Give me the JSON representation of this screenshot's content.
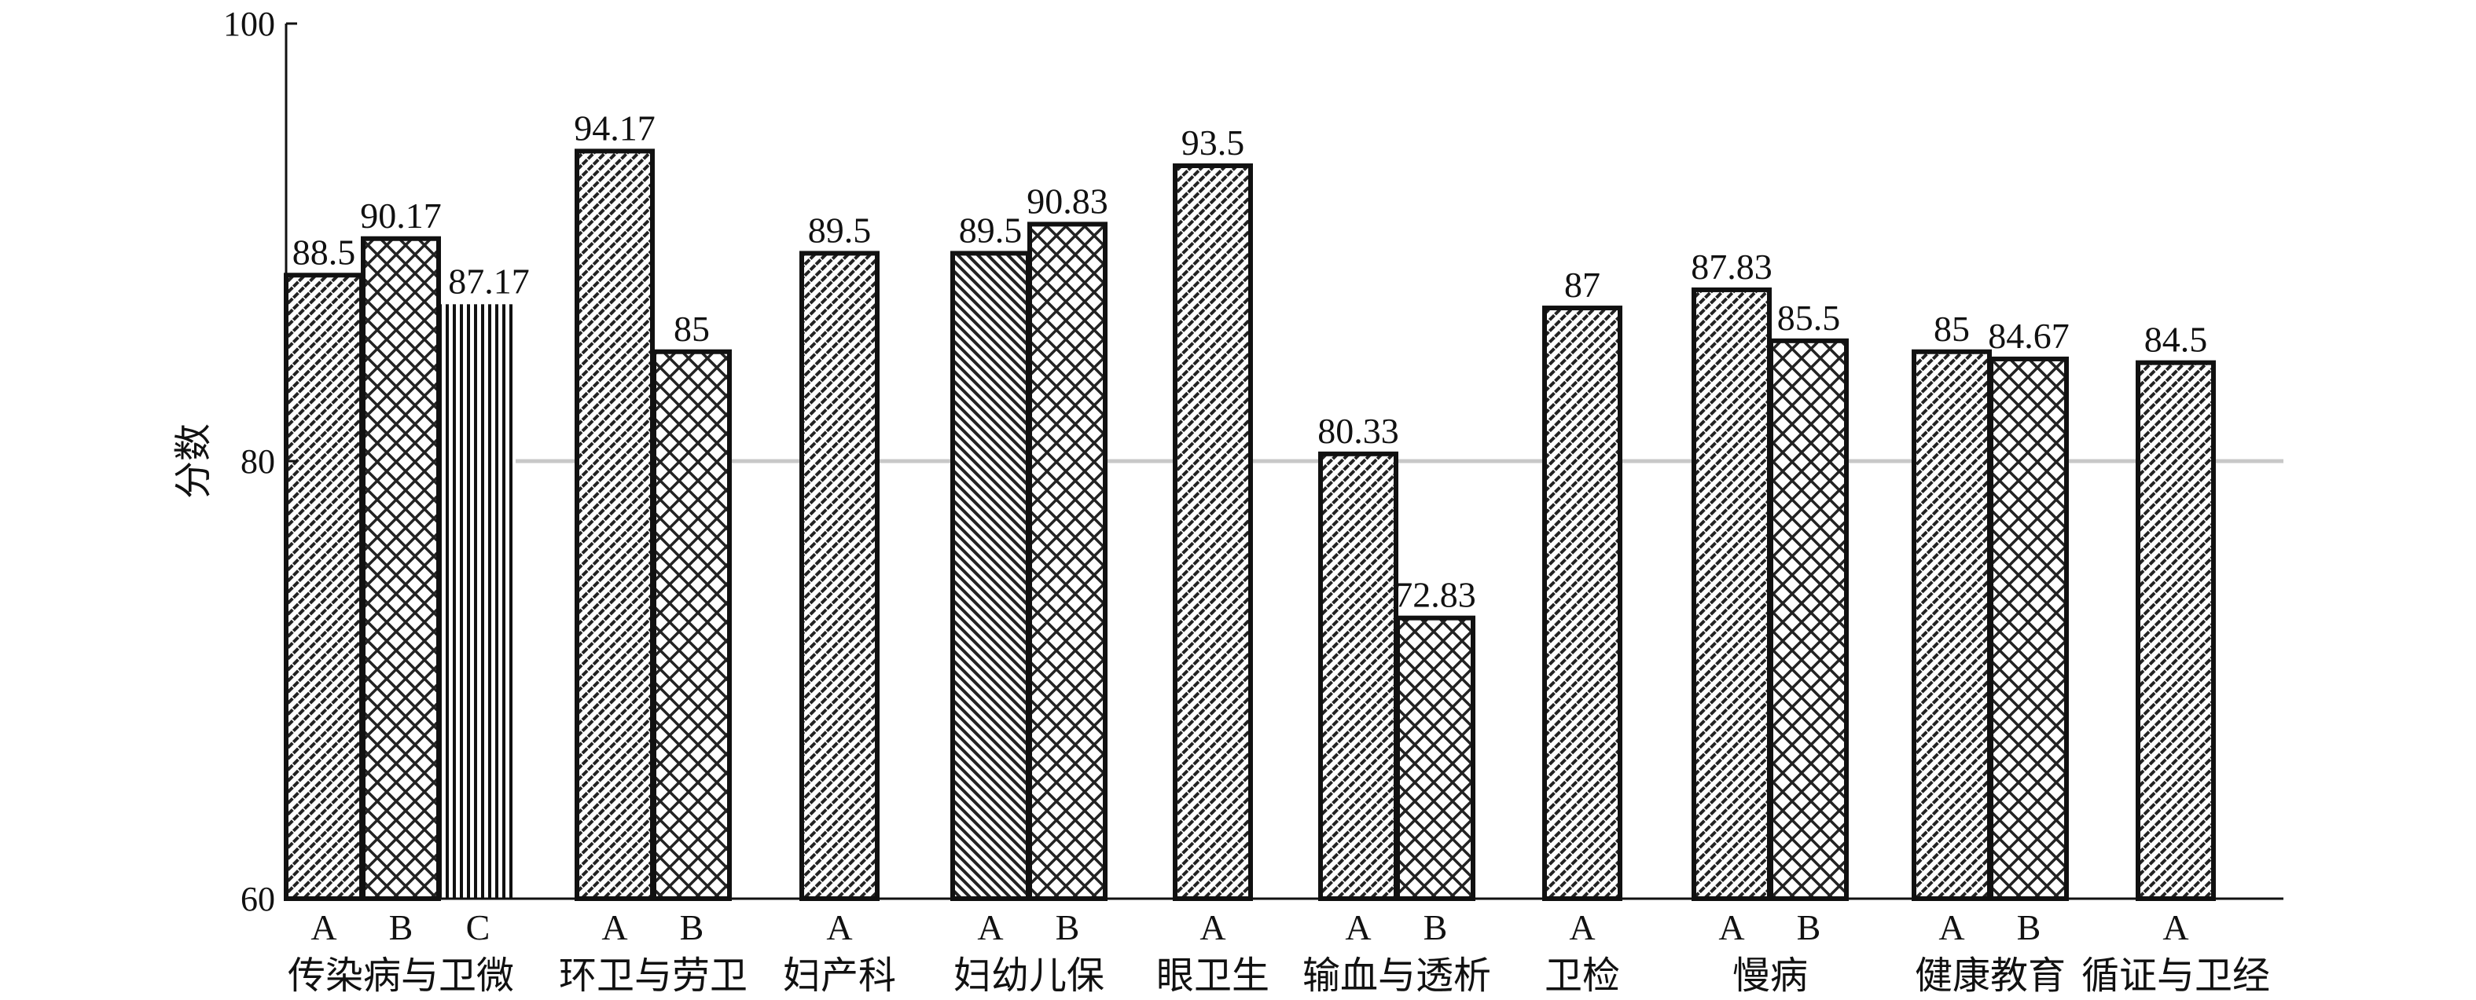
{
  "chart_data": {
    "type": "bar",
    "ylabel": "分数",
    "ylim": [
      60,
      100
    ],
    "yticks": [
      60,
      80,
      100
    ],
    "reference_line": 80,
    "grid": false,
    "groups": [
      {
        "label": "传染病与卫微",
        "bars": [
          {
            "name": "A",
            "value": 88.5,
            "pattern": "diag"
          },
          {
            "name": "B",
            "value": 90.17,
            "pattern": "lattice"
          },
          {
            "name": "C",
            "value": 87.17,
            "pattern": "vline"
          }
        ]
      },
      {
        "label": "环卫与劳卫",
        "bars": [
          {
            "name": "A",
            "value": 94.17,
            "pattern": "diag"
          },
          {
            "name": "B",
            "value": 85,
            "pattern": "lattice"
          }
        ]
      },
      {
        "label": "妇产科",
        "bars": [
          {
            "name": "A",
            "value": 89.5,
            "pattern": "diag"
          }
        ]
      },
      {
        "label": "妇幼儿保",
        "bars": [
          {
            "name": "A",
            "value": 89.5,
            "pattern": "diag2"
          },
          {
            "name": "B",
            "value": 90.83,
            "pattern": "lattice"
          }
        ]
      },
      {
        "label": "眼卫生",
        "bars": [
          {
            "name": "A",
            "value": 93.5,
            "pattern": "diag"
          }
        ]
      },
      {
        "label": "输血与透析",
        "bars": [
          {
            "name": "A",
            "value": 80.33,
            "pattern": "diag"
          },
          {
            "name": "B",
            "value": 72.83,
            "pattern": "lattice"
          }
        ]
      },
      {
        "label": "卫检",
        "bars": [
          {
            "name": "A",
            "value": 87,
            "pattern": "diag"
          }
        ]
      },
      {
        "label": "慢病",
        "bars": [
          {
            "name": "A",
            "value": 87.83,
            "pattern": "diag"
          },
          {
            "name": "B",
            "value": 85.5,
            "pattern": "lattice"
          }
        ]
      },
      {
        "label": "健康教育",
        "bars": [
          {
            "name": "A",
            "value": 85,
            "pattern": "diag"
          },
          {
            "name": "B",
            "value": 84.67,
            "pattern": "lattice"
          }
        ]
      },
      {
        "label": "循证与卫经",
        "bars": [
          {
            "name": "A",
            "value": 84.5,
            "pattern": "diag"
          }
        ]
      }
    ]
  }
}
